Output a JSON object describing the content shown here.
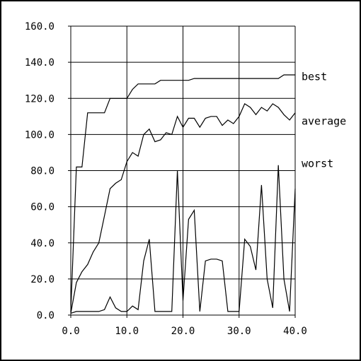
{
  "chart_data": {
    "type": "line",
    "title": "",
    "xlabel": "",
    "ylabel": "",
    "xlim": [
      0,
      40
    ],
    "ylim": [
      0,
      160
    ],
    "grid": true,
    "legend": "direct labels at right end of lines",
    "x_ticks": [
      "0.0",
      "10.0",
      "20.0",
      "30.0",
      "40.0"
    ],
    "y_ticks": [
      "0.0",
      "20.0",
      "40.0",
      "60.0",
      "80.0",
      "100.0",
      "120.0",
      "140.0",
      "160.0"
    ],
    "colors": {
      "line": "#000000",
      "grid": "#000000",
      "background": "#ffffff"
    },
    "series": [
      {
        "name": "best",
        "points": [
          [
            0,
            2
          ],
          [
            1,
            82
          ],
          [
            2,
            82
          ],
          [
            3,
            112
          ],
          [
            4,
            112
          ],
          [
            5,
            112
          ],
          [
            6,
            112
          ],
          [
            7,
            120
          ],
          [
            8,
            120
          ],
          [
            9,
            120
          ],
          [
            10,
            120
          ],
          [
            11,
            125
          ],
          [
            12,
            128
          ],
          [
            13,
            128
          ],
          [
            14,
            128
          ],
          [
            15,
            128
          ],
          [
            16,
            130
          ],
          [
            17,
            130
          ],
          [
            18,
            130
          ],
          [
            19,
            130
          ],
          [
            20,
            130
          ],
          [
            21,
            130
          ],
          [
            22,
            131
          ],
          [
            23,
            131
          ],
          [
            24,
            131
          ],
          [
            25,
            131
          ],
          [
            26,
            131
          ],
          [
            27,
            131
          ],
          [
            28,
            131
          ],
          [
            29,
            131
          ],
          [
            30,
            131
          ],
          [
            31,
            131
          ],
          [
            32,
            131
          ],
          [
            33,
            131
          ],
          [
            34,
            131
          ],
          [
            35,
            131
          ],
          [
            36,
            131
          ],
          [
            37,
            131
          ],
          [
            38,
            133
          ],
          [
            39,
            133
          ],
          [
            40,
            133
          ]
        ]
      },
      {
        "name": "average",
        "points": [
          [
            0,
            1
          ],
          [
            1,
            18
          ],
          [
            2,
            24
          ],
          [
            3,
            28
          ],
          [
            4,
            35
          ],
          [
            5,
            40
          ],
          [
            6,
            55
          ],
          [
            7,
            70
          ],
          [
            8,
            73
          ],
          [
            9,
            75
          ],
          [
            10,
            85
          ],
          [
            11,
            90
          ],
          [
            12,
            88
          ],
          [
            13,
            100
          ],
          [
            14,
            103
          ],
          [
            15,
            96
          ],
          [
            16,
            97
          ],
          [
            17,
            101
          ],
          [
            18,
            100
          ],
          [
            19,
            110
          ],
          [
            20,
            104
          ],
          [
            21,
            109
          ],
          [
            22,
            109
          ],
          [
            23,
            104
          ],
          [
            24,
            109
          ],
          [
            25,
            110
          ],
          [
            26,
            110
          ],
          [
            27,
            105
          ],
          [
            28,
            108
          ],
          [
            29,
            106
          ],
          [
            30,
            110
          ],
          [
            31,
            117
          ],
          [
            32,
            115
          ],
          [
            33,
            111
          ],
          [
            34,
            115
          ],
          [
            35,
            113
          ],
          [
            36,
            117
          ],
          [
            37,
            115
          ],
          [
            38,
            111
          ],
          [
            39,
            108
          ],
          [
            40,
            112
          ]
        ]
      },
      {
        "name": "worst",
        "points": [
          [
            0,
            1
          ],
          [
            1,
            2
          ],
          [
            2,
            2
          ],
          [
            3,
            2
          ],
          [
            4,
            2
          ],
          [
            5,
            2
          ],
          [
            6,
            3
          ],
          [
            7,
            10
          ],
          [
            8,
            4
          ],
          [
            9,
            2
          ],
          [
            10,
            2
          ],
          [
            11,
            5
          ],
          [
            12,
            3
          ],
          [
            13,
            30
          ],
          [
            14,
            42
          ],
          [
            15,
            2
          ],
          [
            16,
            2
          ],
          [
            17,
            2
          ],
          [
            18,
            2
          ],
          [
            19,
            80
          ],
          [
            20,
            8
          ],
          [
            21,
            53
          ],
          [
            22,
            58
          ],
          [
            23,
            2
          ],
          [
            24,
            30
          ],
          [
            25,
            31
          ],
          [
            26,
            31
          ],
          [
            27,
            30
          ],
          [
            28,
            2
          ],
          [
            29,
            2
          ],
          [
            30,
            2
          ],
          [
            31,
            42
          ],
          [
            32,
            38
          ],
          [
            33,
            25
          ],
          [
            34,
            72
          ],
          [
            35,
            20
          ],
          [
            36,
            4
          ],
          [
            37,
            83
          ],
          [
            38,
            20
          ],
          [
            39,
            2
          ],
          [
            40,
            70
          ]
        ]
      }
    ]
  }
}
